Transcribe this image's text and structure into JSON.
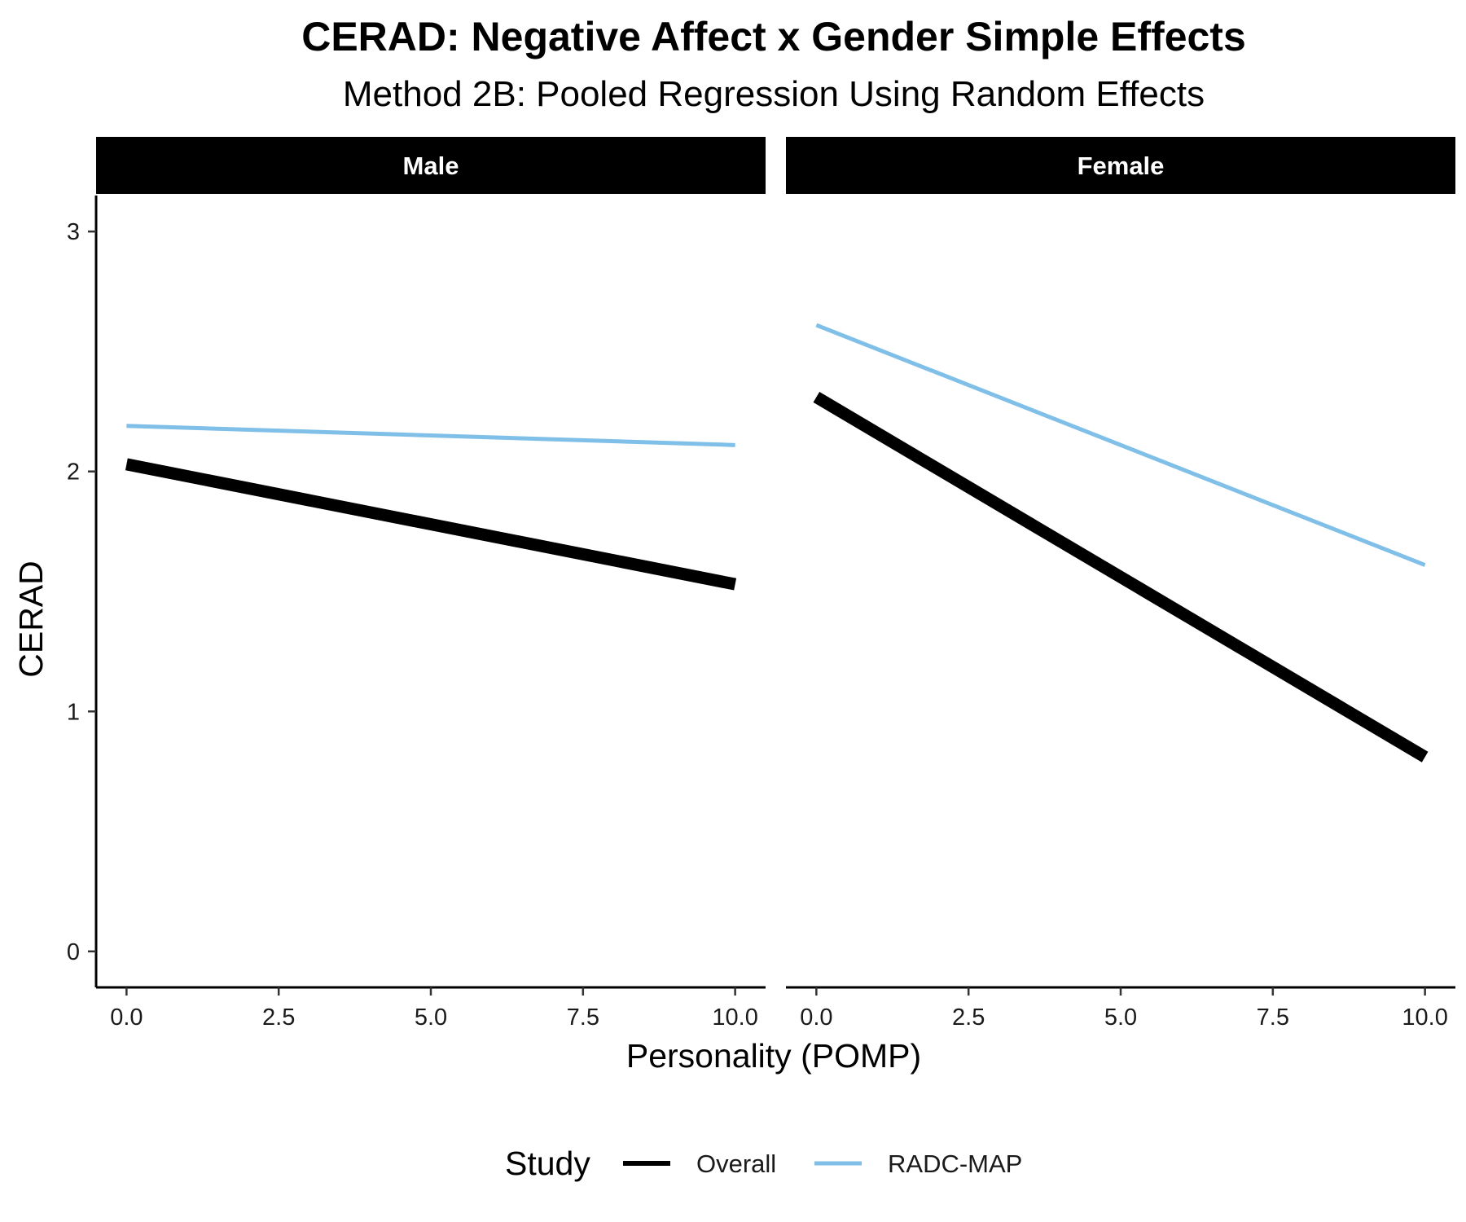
{
  "chart_data": {
    "type": "line",
    "title": "CERAD: Negative Affect x Gender Simple Effects",
    "subtitle": "Method 2B: Pooled Regression Using Random Effects",
    "xlabel": "Personality (POMP)",
    "ylabel": "CERAD",
    "xlim": [
      -0.5,
      10.5
    ],
    "ylim": [
      -0.15,
      3.15
    ],
    "x_ticks": [
      "0.0",
      "2.5",
      "5.0",
      "7.5",
      "10.0"
    ],
    "y_ticks": [
      "0",
      "1",
      "2",
      "3"
    ],
    "grid": false,
    "legend": {
      "title": "Study",
      "position": "bottom",
      "entries": [
        {
          "name": "Overall",
          "color": "#000000"
        },
        {
          "name": "RADC-MAP",
          "color": "#7fbfe8"
        }
      ]
    },
    "panels": [
      {
        "label": "Male",
        "series": [
          {
            "name": "Overall",
            "x": [
              0,
              10
            ],
            "y": [
              2.03,
              1.53
            ]
          },
          {
            "name": "RADC-MAP",
            "x": [
              0,
              10
            ],
            "y": [
              2.19,
              2.11
            ]
          }
        ]
      },
      {
        "label": "Female",
        "series": [
          {
            "name": "Overall",
            "x": [
              0,
              10
            ],
            "y": [
              2.31,
              0.81
            ]
          },
          {
            "name": "RADC-MAP",
            "x": [
              0,
              10
            ],
            "y": [
              2.61,
              1.61
            ]
          }
        ]
      }
    ]
  }
}
